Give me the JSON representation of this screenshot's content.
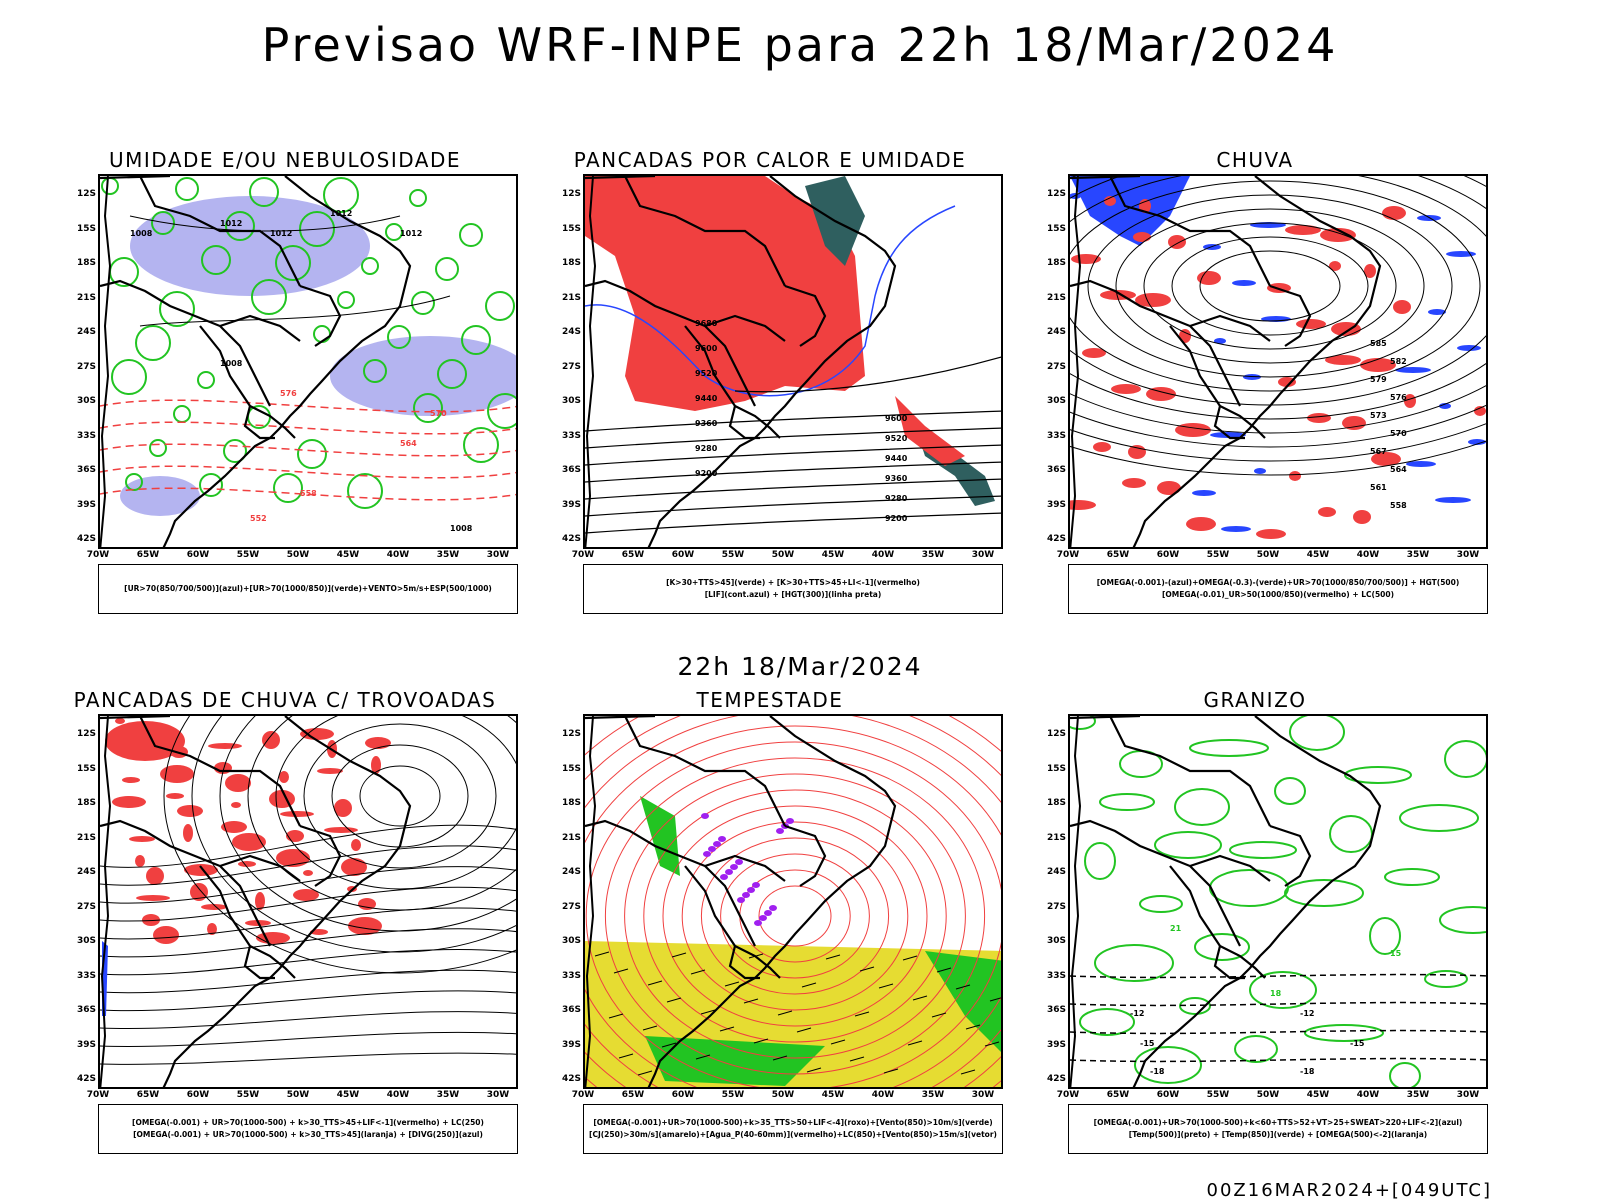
{
  "main_title": "Previsao WRF-INPE  para 22h 18/Mar/2024",
  "mid_title": "22h 18/Mar/2024",
  "footer": "00Z16MAR2024+[049UTC]",
  "latitudes": [
    "12S",
    "15S",
    "18S",
    "21S",
    "24S",
    "27S",
    "30S",
    "33S",
    "36S",
    "39S",
    "42S"
  ],
  "longitudes": [
    "70W",
    "65W",
    "60W",
    "55W",
    "50W",
    "45W",
    "40W",
    "35W",
    "30W"
  ],
  "panels": [
    {
      "title": "UMIDADE E/OU NEBULOSIDADE",
      "legend": [
        "[UR>70(850/700/500)](azul)+[UR>70(1000/850)](verde)+VENTO>5m/s+ESP(500/1000)"
      ],
      "labels": [
        "1008",
        "1012",
        "1012",
        "1012",
        "1012",
        "1008",
        "576",
        "570",
        "564",
        "558",
        "552",
        "1008"
      ]
    },
    {
      "title": "PANCADAS POR CALOR E UMIDADE",
      "legend": [
        "[K>30+TTS>45](verde) + [K>30+TTS>45+LI<-1](vermelho)",
        "[LIF](cont.azul) + [HGT(300)](linha preta)"
      ],
      "labels": [
        "9680",
        "9600",
        "9520",
        "9440",
        "9360",
        "9280",
        "9200",
        "9600",
        "9520",
        "9440",
        "9360",
        "9280",
        "9200"
      ]
    },
    {
      "title": "CHUVA",
      "legend": [
        "[OMEGA(-0.001)-(azul)+OMEGA(-0.3)-(verde)+UR>70(1000/850/700/500)] + HGT(500)",
        "[OMEGA(-0.01)_UR>50(1000/850)(vermelho) + LC(500)"
      ],
      "labels": [
        "585",
        "582",
        "579",
        "576",
        "573",
        "570",
        "567",
        "564",
        "561",
        "558"
      ]
    },
    {
      "title": "PANCADAS DE CHUVA C/ TROVOADAS",
      "legend": [
        "[OMEGA(-0.001) + UR>70(1000-500) + k>30_TTS>45+LIF<-1](vermelho) + LC(250)",
        "[OMEGA(-0.001) + UR>70(1000-500) + k>30_TTS>45](laranja) + [DIVG(250)](azul)"
      ],
      "labels": []
    },
    {
      "title": "TEMPESTADE",
      "legend": [
        "[OMEGA(-0.001)+UR>70(1000-500)+k>35_TTS>50+LIF<-4](roxo)+[Vento(850)>10m/s](verde)",
        "[CJ(250)>30m/s](amarelo)+[Agua_P(40-60mm)](vermelho)+LC(850)+[Vento(850)>15m/s](vetor)"
      ],
      "labels": []
    },
    {
      "title": "GRANIZO",
      "legend": [
        "[OMEGA(-0.001)+UR>70(1000-500)+k<60+TTS>52+VT>25+SWEAT>220+LIF<-2](azul)",
        "[Temp(500)](preto) + [Temp(850)](verde) + [OMEGA(500)<-2](laranja)"
      ],
      "labels": [
        "-12",
        "-12",
        "-15",
        "-15",
        "-18",
        "-18",
        "21",
        "18",
        "15"
      ]
    }
  ],
  "colors": {
    "red": "#f04040",
    "green": "#22c422",
    "blue": "#2846ff",
    "lavender": "#b4b4f0",
    "teal": "#2f5f5f",
    "yellow": "#e6dc32",
    "purple": "#a020f0",
    "black": "#000000"
  }
}
